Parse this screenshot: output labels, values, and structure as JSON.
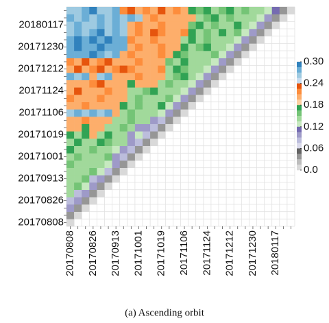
{
  "chart_data": {
    "type": "heatmap",
    "caption": "(a) Ascending orbit",
    "categories": [
      "20170808",
      null,
      null,
      "20170826",
      null,
      null,
      "20170913",
      null,
      null,
      "20171001",
      null,
      null,
      "20171019",
      null,
      null,
      "20171106",
      null,
      null,
      "20171124",
      null,
      null,
      "20171212",
      null,
      null,
      "20171230",
      null,
      null,
      "20180117",
      null,
      null
    ],
    "clim": [
      0,
      0.3
    ],
    "colors": [
      "#3182bd",
      "#6baed6",
      "#9ecae1",
      "#c6dbef",
      "#e6550d",
      "#fd8d3c",
      "#fdae6b",
      "#fdd0a2",
      "#31a354",
      "#74c476",
      "#a1d99b",
      "#c7e9c0",
      "#756bb1",
      "#9e9ac8",
      "#bcbddc",
      "#dadaeb",
      "#636363",
      "#969696",
      "#bdbdbd",
      "#d9d9d9"
    ],
    "cticks": [
      {
        "value": 0.3,
        "label": "0.30"
      },
      0.24,
      0.18,
      0.12,
      {
        "value": 0.06,
        "label": "0.06"
      },
      {
        "value": 0,
        "label": "0.0"
      }
    ],
    "z": [
      [
        0.01
      ],
      [
        0.04,
        0.01
      ],
      [
        0.1,
        0.04,
        0.01
      ],
      [
        0.09,
        0.1,
        0.04,
        0.01
      ],
      [
        0.15,
        0.09,
        0.1,
        0.04,
        0.01
      ],
      [
        0.14,
        0.16,
        0.13,
        0.1,
        0.04,
        0.01
      ],
      [
        0.15,
        0.14,
        0.16,
        0.09,
        0.1,
        0.04,
        0.01
      ],
      [
        0.14,
        0.15,
        0.14,
        0.16,
        0.13,
        0.09,
        0.04,
        0.01
      ],
      [
        0.16,
        0.14,
        0.15,
        0.14,
        0.15,
        0.13,
        0.1,
        0.04,
        0.01
      ],
      [
        0.14,
        0.16,
        0.14,
        0.15,
        0.14,
        0.16,
        0.1,
        0.09,
        0.04,
        0.01
      ],
      [
        0.17,
        0.15,
        0.14,
        0.16,
        0.15,
        0.14,
        0.13,
        0.1,
        0.09,
        0.04,
        0.01
      ],
      [
        0.15,
        0.17,
        0.14,
        0.15,
        0.17,
        0.16,
        0.14,
        0.15,
        0.1,
        0.09,
        0.04,
        0.01
      ],
      [
        0.17,
        0.14,
        0.17,
        0.2,
        0.15,
        0.17,
        0.14,
        0.15,
        0.1,
        0.13,
        0.09,
        0.04,
        0.01
      ],
      [
        0.2,
        0.21,
        0.17,
        0.21,
        0.2,
        0.15,
        0.14,
        0.16,
        0.15,
        0.1,
        0.1,
        0.09,
        0.04,
        0.01
      ],
      [
        0.21,
        0.2,
        0.22,
        0.21,
        0.2,
        0.21,
        0.15,
        0.14,
        0.16,
        0.15,
        0.14,
        0.1,
        0.09,
        0.04,
        0.01
      ],
      [
        0.26,
        0.27,
        0.26,
        0.27,
        0.26,
        0.27,
        0.2,
        0.15,
        0.16,
        0.14,
        0.15,
        0.14,
        0.13,
        0.1,
        0.04,
        0.01
      ],
      [
        0.21,
        0.2,
        0.22,
        0.21,
        0.2,
        0.21,
        0.2,
        0.17,
        0.15,
        0.16,
        0.14,
        0.15,
        0.17,
        0.13,
        0.1,
        0.04,
        0.01
      ],
      [
        0.22,
        0.21,
        0.2,
        0.21,
        0.22,
        0.21,
        0.2,
        0.21,
        0.15,
        0.16,
        0.14,
        0.15,
        0.14,
        0.16,
        0.13,
        0.1,
        0.04,
        0.01
      ],
      [
        0.21,
        0.23,
        0.21,
        0.2,
        0.21,
        0.22,
        0.21,
        0.2,
        0.15,
        0.14,
        0.16,
        0.17,
        0.15,
        0.14,
        0.15,
        0.13,
        0.1,
        0.04,
        0.01
      ],
      [
        0.2,
        0.21,
        0.2,
        0.22,
        0.23,
        0.21,
        0.2,
        0.21,
        0.17,
        0.21,
        0.2,
        0.21,
        0.15,
        0.16,
        0.14,
        0.15,
        0.13,
        0.1,
        0.04,
        0.01
      ],
      [
        0.27,
        0.26,
        0.27,
        0.2,
        0.26,
        0.27,
        0.21,
        0.2,
        0.21,
        0.22,
        0.21,
        0.2,
        0.21,
        0.15,
        0.16,
        0.17,
        0.15,
        0.13,
        0.1,
        0.04,
        0.01
      ],
      [
        0.21,
        0.23,
        0.21,
        0.22,
        0.23,
        0.21,
        0.22,
        0.23,
        0.22,
        0.21,
        0.2,
        0.21,
        0.22,
        0.15,
        0.17,
        0.16,
        0.14,
        0.15,
        0.13,
        0.1,
        0.04,
        0.01
      ],
      [
        0.22,
        0.21,
        0.23,
        0.21,
        0.22,
        0.23,
        0.21,
        0.2,
        0.21,
        0.22,
        0.2,
        0.21,
        0.2,
        0.16,
        0.15,
        0.17,
        0.15,
        0.14,
        0.15,
        0.13,
        0.1,
        0.04,
        0.01
      ],
      [
        0.27,
        0.28,
        0.27,
        0.29,
        0.27,
        0.26,
        0.27,
        0.21,
        0.22,
        0.21,
        0.2,
        0.21,
        0.22,
        0.21,
        0.17,
        0.16,
        0.15,
        0.14,
        0.15,
        0.16,
        0.13,
        0.1,
        0.04,
        0.01
      ],
      [
        0.28,
        0.29,
        0.28,
        0.27,
        0.29,
        0.28,
        0.27,
        0.27,
        0.21,
        0.22,
        0.21,
        0.2,
        0.22,
        0.21,
        0.2,
        0.17,
        0.15,
        0.16,
        0.17,
        0.15,
        0.14,
        0.13,
        0.1,
        0.04,
        0.01
      ],
      [
        0.27,
        0.29,
        0.28,
        0.29,
        0.28,
        0.29,
        0.28,
        0.27,
        0.22,
        0.21,
        0.2,
        0.22,
        0.21,
        0.2,
        0.21,
        0.15,
        0.17,
        0.14,
        0.16,
        0.15,
        0.14,
        0.15,
        0.13,
        0.1,
        0.04,
        0.01
      ],
      [
        0.26,
        0.27,
        0.26,
        0.27,
        0.29,
        0.26,
        0.27,
        0.26,
        0.21,
        0.22,
        0.21,
        0.23,
        0.22,
        0.2,
        0.21,
        0.22,
        0.17,
        0.15,
        0.16,
        0.14,
        0.17,
        0.15,
        0.16,
        0.13,
        0.1,
        0.04,
        0.01
      ],
      [
        0.26,
        0.27,
        0.26,
        0.26,
        0.27,
        0.26,
        0.27,
        0.26,
        0.21,
        0.22,
        0.2,
        0.21,
        0.22,
        0.21,
        0.2,
        0.21,
        0.16,
        0.17,
        0.15,
        0.16,
        0.15,
        0.14,
        0.17,
        0.15,
        0.13,
        0.1,
        0.04,
        0.01
      ],
      [
        0.27,
        0.26,
        0.27,
        0.26,
        0.27,
        0.26,
        0.27,
        0.26,
        0.27,
        0.26,
        0.21,
        0.22,
        0.21,
        0.2,
        0.21,
        0.2,
        0.21,
        0.15,
        0.16,
        0.17,
        0.15,
        0.16,
        0.15,
        0.14,
        0.15,
        0.13,
        0.1,
        0.04,
        0.01
      ],
      [
        0.26,
        0.26,
        0.27,
        0.29,
        0.26,
        0.26,
        0.27,
        0.22,
        0.23,
        0.21,
        0.22,
        0.21,
        0.23,
        0.21,
        0.22,
        0.21,
        0.17,
        0.16,
        0.17,
        0.15,
        0.16,
        0.17,
        0.15,
        0.16,
        0.15,
        0.14,
        0.13,
        0.12,
        0.04,
        0.01
      ]
    ]
  }
}
